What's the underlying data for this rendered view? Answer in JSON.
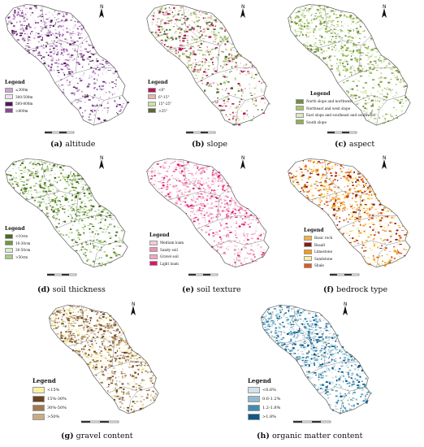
{
  "panels": [
    {
      "id": "a",
      "caption_letter": "(a)",
      "caption_text": "altitude",
      "north": "N",
      "legend": {
        "title": "Legend",
        "items": [
          {
            "label": "≤300m",
            "color": "#c9a3d4"
          },
          {
            "label": "300-500m",
            "color": "#efe3f3"
          },
          {
            "label": "500-800m",
            "color": "#4d1a55"
          },
          {
            "label": ">800m",
            "color": "#8a4a96"
          }
        ]
      },
      "palette": [
        "#c9a3d4",
        "#efe3f3",
        "#4d1a55",
        "#8a4a96",
        "#b07cc0"
      ]
    },
    {
      "id": "b",
      "caption_letter": "(b)",
      "caption_text": "slope",
      "north": "N",
      "legend": {
        "title": "Legend",
        "items": [
          {
            "label": "<6°",
            "color": "#b3155a"
          },
          {
            "label": "6°-15°",
            "color": "#eab4ae"
          },
          {
            "label": "15°-25°",
            "color": "#cfe0a8"
          },
          {
            "label": ">25°",
            "color": "#556b2f"
          }
        ]
      },
      "palette": [
        "#eab4ae",
        "#cfe0a8",
        "#556b2f",
        "#b3155a",
        "#9dbb6a"
      ]
    },
    {
      "id": "c",
      "caption_letter": "(c)",
      "caption_text": "aspect",
      "north": "N",
      "legend": {
        "title": "Legend",
        "items": [
          {
            "label": "North slope and northwest",
            "color": "#6f8f3a"
          },
          {
            "label": "Northeast and west slope",
            "color": "#a8c66a"
          },
          {
            "label": "East slope and southeast and southwest",
            "color": "#dbe9c0"
          },
          {
            "label": "South slope",
            "color": "#8fb24e"
          }
        ]
      },
      "palette": [
        "#6f8f3a",
        "#a8c66a",
        "#dbe9c0",
        "#8fb24e"
      ]
    },
    {
      "id": "d",
      "caption_letter": "(d)",
      "caption_text": "soil thickness",
      "north": "N",
      "legend": {
        "title": "Legend",
        "items": [
          {
            "label": "<10cm",
            "color": "#4a6a1e"
          },
          {
            "label": "10-30cm",
            "color": "#6f9a3a"
          },
          {
            "label": "30-50cm",
            "color": "#d9ead0"
          },
          {
            "label": ">50cm",
            "color": "#a9cf86"
          }
        ]
      },
      "palette": [
        "#4a6a1e",
        "#6f9a3a",
        "#a9cf86",
        "#d9ead0"
      ]
    },
    {
      "id": "e",
      "caption_letter": "(e)",
      "caption_text": "soil texture",
      "north": "N",
      "legend": {
        "title": "Legend",
        "items": [
          {
            "label": "Medium loam",
            "color": "#f7c8dc"
          },
          {
            "label": "Sandy soil",
            "color": "#ef8fb4"
          },
          {
            "label": "Gravel soil",
            "color": "#f4a6c4"
          },
          {
            "label": "Light loam",
            "color": "#e0146e"
          }
        ]
      },
      "palette": [
        "#f7c8dc",
        "#ef8fb4",
        "#e0146e",
        "#f4a6c4"
      ]
    },
    {
      "id": "f",
      "caption_letter": "(f)",
      "caption_text": "bedrock type",
      "north": "N",
      "legend": {
        "title": "Legend",
        "items": [
          {
            "label": "Basic rock",
            "color": "#f6b23c"
          },
          {
            "label": "Basalt",
            "color": "#8b1a10"
          },
          {
            "label": "Limestone",
            "color": "#f39c12"
          },
          {
            "label": "Sandstone",
            "color": "#fcefa0"
          },
          {
            "label": "Shale",
            "color": "#e2591a"
          }
        ]
      },
      "palette": [
        "#8b1a10",
        "#f6b23c",
        "#f39c12",
        "#fcefa0",
        "#e2591a"
      ]
    },
    {
      "id": "g",
      "caption_letter": "(g)",
      "caption_text": "gravel content",
      "north": "N",
      "legend": {
        "title": "Legend",
        "items": [
          {
            "label": "<15%",
            "color": "#f7f0a6"
          },
          {
            "label": "15%-30%",
            "color": "#6e4320"
          },
          {
            "label": "30%-50%",
            "color": "#a07a4e"
          },
          {
            "label": ">50%",
            "color": "#c9ad82"
          }
        ]
      },
      "palette": [
        "#6e4320",
        "#a07a4e",
        "#c9ad82",
        "#f7f0a6"
      ]
    },
    {
      "id": "h",
      "caption_letter": "(h)",
      "caption_text": "organic matter content",
      "north": "N",
      "legend": {
        "title": "Legend",
        "items": [
          {
            "label": "<0.6%",
            "color": "#cfe3ea"
          },
          {
            "label": "0.6-1.2%",
            "color": "#8fbccd"
          },
          {
            "label": "1.2-1.8%",
            "color": "#3f8cb0"
          },
          {
            "label": ">1.8%",
            "color": "#0d5a88"
          }
        ]
      },
      "palette": [
        "#0d5a88",
        "#3f8cb0",
        "#8fbccd",
        "#cfe3ea"
      ]
    }
  ]
}
